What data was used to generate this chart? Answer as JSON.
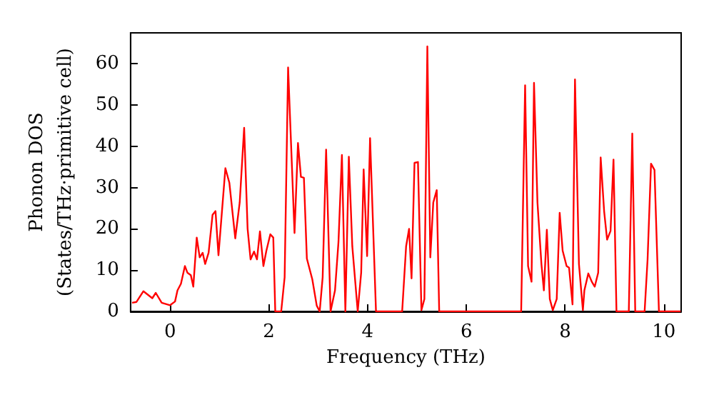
{
  "chart_data": {
    "type": "line",
    "xlabel": "Frequency (THz)",
    "ylabel": "Phonon DOS\n(States/THz·primitive cell)",
    "xlim": [
      -0.8,
      10.35
    ],
    "ylim": [
      0,
      67.5
    ],
    "xticks": [
      0,
      2,
      4,
      6,
      8,
      10
    ],
    "yticks": [
      0,
      10,
      20,
      30,
      40,
      50,
      60
    ],
    "grid": false,
    "marker": "none",
    "line_style": "solid",
    "x": [
      -0.77,
      -0.68,
      -0.54,
      -0.36,
      -0.29,
      -0.17,
      0,
      0.1,
      0.15,
      0.22,
      0.3,
      0.35,
      0.42,
      0.47,
      0.54,
      0.6,
      0.66,
      0.71,
      0.78,
      0.86,
      0.92,
      0.98,
      1.12,
      1.2,
      1.32,
      1.41,
      1.5,
      1.57,
      1.63,
      1.7,
      1.76,
      1.82,
      1.89,
      1.95,
      2.03,
      2.09,
      2.13,
      2.25,
      2.32,
      2.39,
      2.52,
      2.59,
      2.65,
      2.71,
      2.77,
      2.88,
      2.97,
      3.03,
      3.09,
      3.16,
      3.25,
      3.34,
      3.41,
      3.48,
      3.55,
      3.62,
      3.69,
      3.8,
      3.87,
      3.92,
      3.99,
      4.05,
      4.17,
      4.7,
      4.78,
      4.84,
      4.89,
      4.95,
      5.02,
      5.09,
      5.15,
      5.21,
      5.27,
      5.33,
      5.4,
      5.45,
      7.11,
      7.19,
      7.25,
      7.32,
      7.37,
      7.44,
      7.52,
      7.57,
      7.63,
      7.69,
      7.75,
      7.83,
      7.89,
      7.95,
      8.03,
      8.08,
      8.15,
      8.2,
      8.28,
      8.36,
      8.39,
      8.47,
      8.54,
      8.6,
      8.67,
      8.72,
      8.79,
      8.85,
      8.92,
      8.98,
      9.04,
      9.29,
      9.36,
      9.42,
      9.61,
      9.67,
      9.74,
      9.81,
      9.9,
      10.34
    ],
    "series": [
      {
        "color": "#ff0000",
        "values": [
          2.1,
          2.3,
          4.9,
          3.2,
          4.5,
          2.1,
          1.5,
          2.4,
          5.1,
          6.7,
          11,
          9.4,
          8.8,
          6,
          17.9,
          13.1,
          14.2,
          11.5,
          14.2,
          23.4,
          24.3,
          13.6,
          34.7,
          31.2,
          17.7,
          26.4,
          44.5,
          20,
          12.6,
          14.5,
          12.6,
          19.4,
          11,
          14.7,
          18.7,
          17.9,
          0,
          0,
          8.3,
          59.1,
          19,
          40.8,
          32.6,
          32.4,
          12.8,
          7.8,
          1.4,
          0,
          8.3,
          39.2,
          0,
          5.1,
          16.8,
          37.9,
          0,
          37.5,
          15.8,
          0,
          9.4,
          34.4,
          13.4,
          42,
          0,
          0,
          15.8,
          20,
          8,
          36,
          36.2,
          0.3,
          3,
          64.2,
          13.1,
          26.4,
          29.4,
          0,
          0,
          54.8,
          11,
          7.2,
          55.4,
          26.4,
          11.5,
          5.1,
          19.8,
          3,
          0.3,
          3,
          23.9,
          14.7,
          11,
          10.6,
          1.7,
          56.2,
          11.5,
          0.3,
          5.1,
          9.2,
          7.2,
          6,
          9.4,
          37.3,
          24.3,
          17.4,
          19.5,
          36.8,
          0,
          0,
          43.1,
          0,
          0,
          12.6,
          35.8,
          34.3,
          0,
          0
        ]
      }
    ]
  }
}
